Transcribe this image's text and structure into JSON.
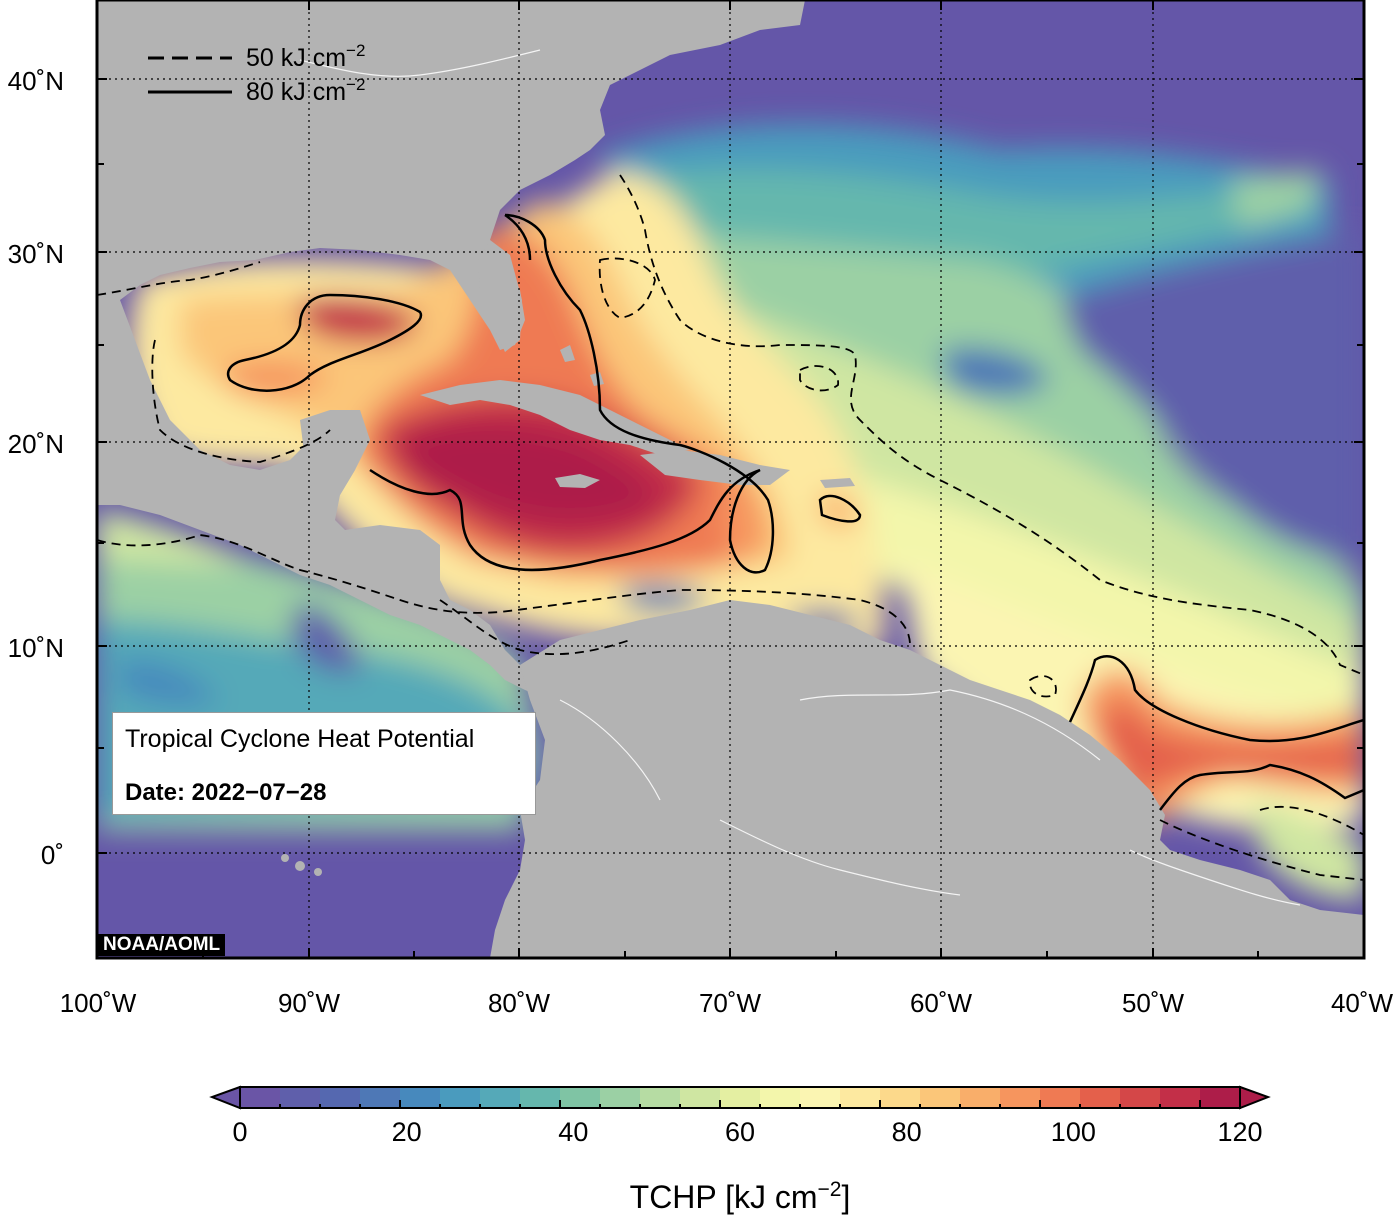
{
  "map": {
    "title": "Tropical Cyclone Heat Potential",
    "date": "Date: 2022−07−28",
    "credit": "NOAA/AOML",
    "lon_range": [
      -100,
      -40
    ],
    "lat_range": [
      -5,
      44
    ],
    "lat_ticks": [
      {
        "value": 40,
        "label": "40˚N"
      },
      {
        "value": 30,
        "label": "30˚N"
      },
      {
        "value": 20,
        "label": "20˚N"
      },
      {
        "value": 10,
        "label": "10˚N"
      },
      {
        "value": 0,
        "label": "0˚"
      }
    ],
    "lon_ticks": [
      {
        "value": -100,
        "label": "100˚W"
      },
      {
        "value": -90,
        "label": "90˚W"
      },
      {
        "value": -80,
        "label": "80˚W"
      },
      {
        "value": -70,
        "label": "70˚W"
      },
      {
        "value": -60,
        "label": "60˚W"
      },
      {
        "value": -50,
        "label": "50˚W"
      },
      {
        "value": -40,
        "label": "40˚W"
      }
    ],
    "land_color": "#b3b3b3",
    "ocean_low_color": "#6456a8"
  },
  "contour_legend": {
    "dashed": {
      "value": "50",
      "unit": "kJ cm",
      "exp": "−2"
    },
    "solid": {
      "value": "80",
      "unit": "kJ cm",
      "exp": "−2"
    }
  },
  "colorbar": {
    "min": 0,
    "max": 120,
    "step": 5,
    "ticks": [
      "0",
      "20",
      "40",
      "60",
      "80",
      "100",
      "120"
    ],
    "title": "TCHP [kJ cm",
    "title_exp": "−2",
    "title_end": "]",
    "colors": [
      "#6a55a6",
      "#5f5fab",
      "#5568b0",
      "#4e78b6",
      "#4789bd",
      "#4a9bbe",
      "#55a9b8",
      "#65b7ad",
      "#7fc4a4",
      "#9bd0a4",
      "#b6dca3",
      "#cfe6a2",
      "#e4efa2",
      "#f3f6ab",
      "#fbf5b2",
      "#fde9a0",
      "#fcd98b",
      "#fbc679",
      "#f9ae6a",
      "#f6955e",
      "#ef7a53",
      "#e4604b",
      "#d44748",
      "#c32f48",
      "#ad1d49"
    ]
  }
}
